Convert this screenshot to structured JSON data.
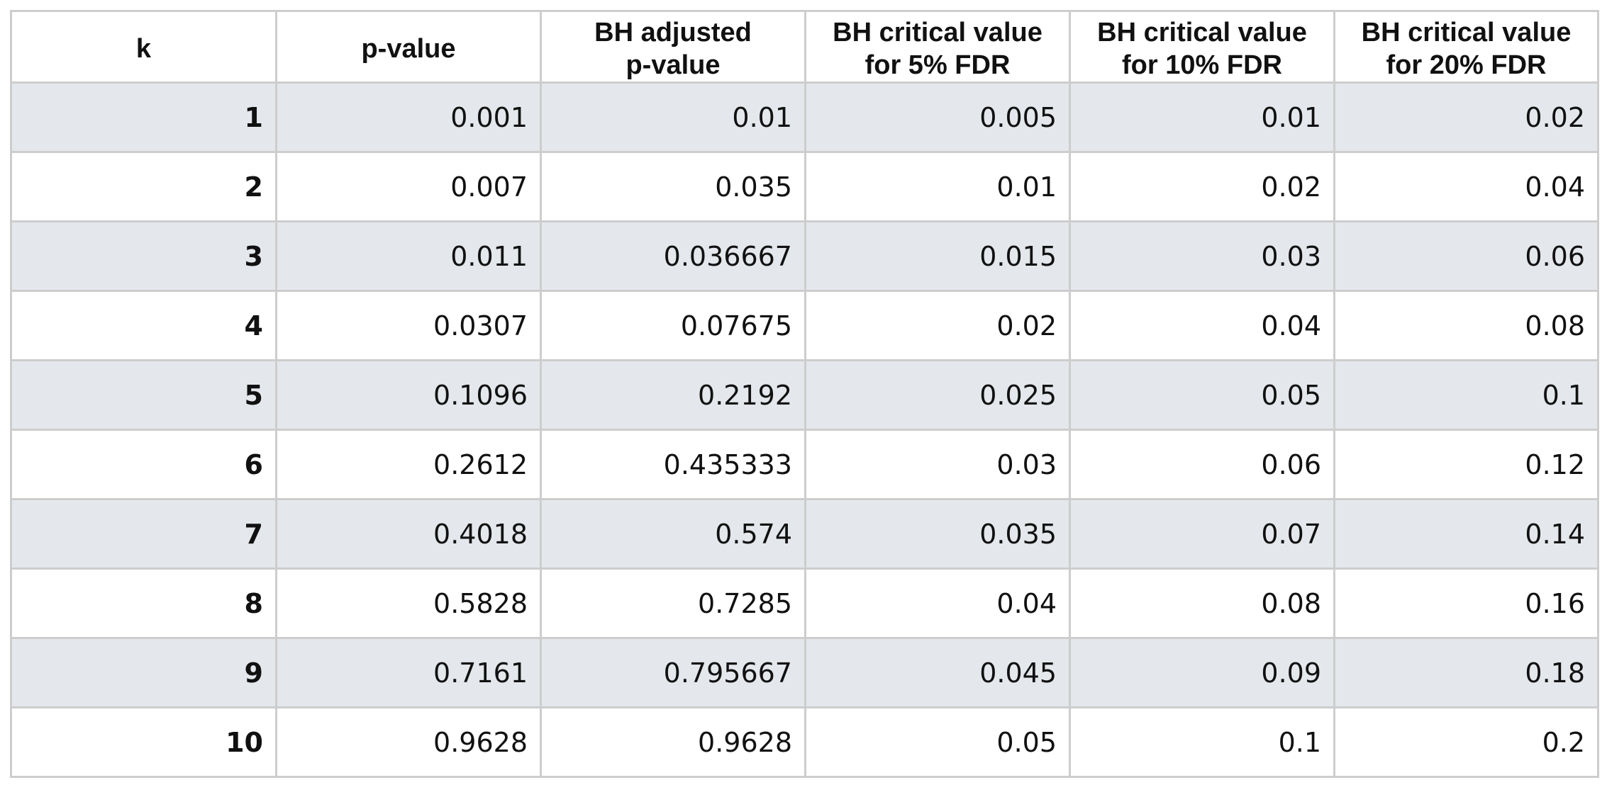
{
  "table": {
    "headers": {
      "k": "k",
      "p_value": "p-value",
      "bh_adjusted": {
        "line1": "BH adjusted",
        "line2": "p-value"
      },
      "crit_5": {
        "line1": "BH critical value",
        "line2": "for 5% FDR"
      },
      "crit_10": {
        "line1": "BH critical value",
        "line2": "for 10% FDR"
      },
      "crit_20": {
        "line1": "BH critical value",
        "line2": "for 20% FDR"
      }
    },
    "rows": [
      {
        "k": "1",
        "p": "0.001",
        "adj": "0.01",
        "c5": "0.005",
        "c10": "0.01",
        "c20": "0.02"
      },
      {
        "k": "2",
        "p": "0.007",
        "adj": "0.035",
        "c5": "0.01",
        "c10": "0.02",
        "c20": "0.04"
      },
      {
        "k": "3",
        "p": "0.011",
        "adj": "0.036667",
        "c5": "0.015",
        "c10": "0.03",
        "c20": "0.06"
      },
      {
        "k": "4",
        "p": "0.0307",
        "adj": "0.07675",
        "c5": "0.02",
        "c10": "0.04",
        "c20": "0.08"
      },
      {
        "k": "5",
        "p": "0.1096",
        "adj": "0.2192",
        "c5": "0.025",
        "c10": "0.05",
        "c20": "0.1"
      },
      {
        "k": "6",
        "p": "0.2612",
        "adj": "0.435333",
        "c5": "0.03",
        "c10": "0.06",
        "c20": "0.12"
      },
      {
        "k": "7",
        "p": "0.4018",
        "adj": "0.574",
        "c5": "0.035",
        "c10": "0.07",
        "c20": "0.14"
      },
      {
        "k": "8",
        "p": "0.5828",
        "adj": "0.7285",
        "c5": "0.04",
        "c10": "0.08",
        "c20": "0.16"
      },
      {
        "k": "9",
        "p": "0.7161",
        "adj": "0.795667",
        "c5": "0.045",
        "c10": "0.09",
        "c20": "0.18"
      },
      {
        "k": "10",
        "p": "0.9628",
        "adj": "0.9628",
        "c5": "0.05",
        "c10": "0.1",
        "c20": "0.2"
      }
    ]
  },
  "colors": {
    "shaded_row": "#e4e7eb",
    "plain_row": "#ffffff",
    "grid_line": "#cdcdcd",
    "text": "#111111"
  }
}
